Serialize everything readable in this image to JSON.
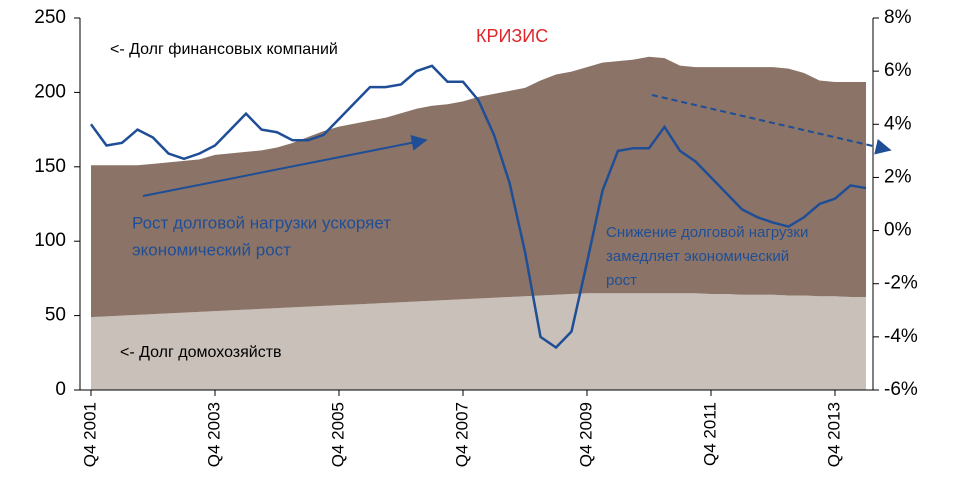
{
  "chart_data": {
    "type": "area",
    "categories": [
      "Q4 2001",
      null,
      null,
      null,
      null,
      null,
      null,
      null,
      "Q4 2003",
      null,
      null,
      null,
      null,
      null,
      null,
      null,
      "Q4 2005",
      null,
      null,
      null,
      null,
      null,
      null,
      null,
      "Q4 2007",
      null,
      null,
      null,
      null,
      null,
      null,
      null,
      "Q4 2009",
      null,
      null,
      null,
      null,
      null,
      null,
      null,
      "Q4 2011",
      null,
      null,
      null,
      null,
      null,
      null,
      null,
      "Q4 2013",
      null,
      null
    ],
    "series": [
      {
        "name": "Долг домохозяйств",
        "type": "area",
        "color": "#c9c0ba",
        "values": [
          49,
          49.5,
          50,
          50.5,
          51,
          51.5,
          52,
          52.5,
          53,
          53.5,
          54,
          54.5,
          55,
          55.5,
          56,
          56.5,
          57,
          57.5,
          58,
          58.5,
          59,
          59.5,
          60,
          60.5,
          61,
          61.5,
          62,
          62.5,
          63,
          63.5,
          64,
          64.5,
          65,
          65,
          65,
          65,
          65,
          65,
          65,
          65,
          64.5,
          64.5,
          64,
          64,
          64,
          63.5,
          63.5,
          63,
          63,
          62.5,
          62.5
        ]
      },
      {
        "name": "Долг финансовых компаний",
        "type": "area",
        "color": "#8b7467",
        "values": [
          102,
          101.5,
          101,
          100.5,
          101,
          101.5,
          102,
          102.5,
          105,
          105.5,
          106,
          106.5,
          108,
          110.5,
          114,
          117.5,
          120,
          121.5,
          123,
          124.5,
          127,
          129.5,
          131,
          131.5,
          133,
          135.5,
          137,
          138.5,
          140,
          144.5,
          148,
          149.5,
          152,
          155,
          156,
          157,
          159,
          158,
          153,
          152,
          152.5,
          152.5,
          153,
          153,
          153,
          152.5,
          149.5,
          145,
          144,
          144.5,
          144.5
        ]
      },
      {
        "type": "line",
        "axis": "y2",
        "color": "#1f4e96",
        "values": [
          4.0,
          3.2,
          3.3,
          3.8,
          3.5,
          2.9,
          2.7,
          2.9,
          3.2,
          3.8,
          4.4,
          3.8,
          3.7,
          3.4,
          3.4,
          3.6,
          4.2,
          4.8,
          5.4,
          5.4,
          5.5,
          6.0,
          6.2,
          5.6,
          5.6,
          4.9,
          3.6,
          1.8,
          -0.8,
          -4.0,
          -4.4,
          -3.8,
          -1.2,
          1.5,
          3.0,
          3.1,
          3.1,
          3.9,
          3.0,
          2.6,
          2.0,
          1.4,
          0.8,
          0.5,
          0.3,
          0.15,
          0.5,
          1.0,
          1.2,
          1.7,
          1.6
        ]
      }
    ],
    "ylim": [
      0,
      250
    ],
    "yticks": [
      0,
      50,
      100,
      150,
      200,
      250
    ],
    "y2lim": [
      -6,
      8
    ],
    "y2ticks": [
      {
        "value": -6,
        "label": "-6%"
      },
      {
        "value": -4,
        "label": "-4%"
      },
      {
        "value": -2,
        "label": "-2%"
      },
      {
        "value": 0,
        "label": "0%"
      },
      {
        "value": 2,
        "label": "2%"
      },
      {
        "value": 4,
        "label": "4%"
      },
      {
        "value": 6,
        "label": "6%"
      },
      {
        "value": 8,
        "label": "8%"
      }
    ],
    "annotations": [
      {
        "text": [
          "<- Долг финансовых компаний"
        ]
      },
      {
        "text": [
          "КРИЗИС"
        ]
      },
      {
        "text": [
          "Рост долговой нагрузки ускоряет",
          "экономический рост"
        ]
      },
      {
        "text": [
          "Снижение долговой нагрузки",
          "замедляет экономический",
          "рост"
        ]
      },
      {
        "text": [
          "<- Долг домохозяйств"
        ]
      }
    ]
  }
}
